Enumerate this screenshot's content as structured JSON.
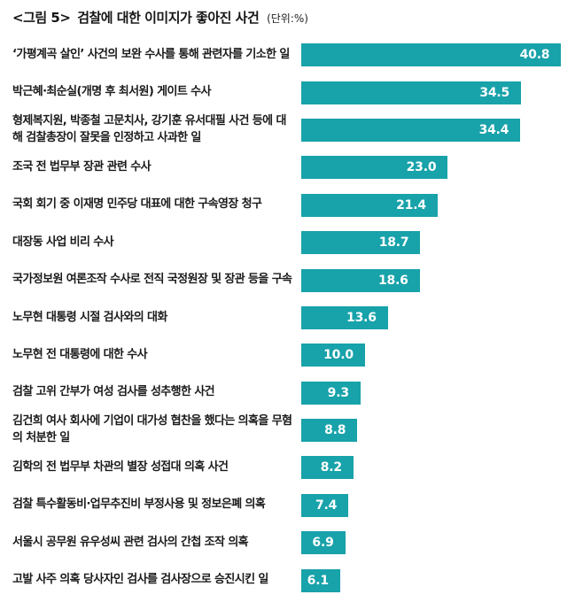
{
  "header": {
    "figure_label": "<그림 5>",
    "title": "검찰에 대한 이미지가 좋아진 사건",
    "unit": "(단위:%)"
  },
  "chart_data": {
    "type": "bar",
    "orientation": "horizontal",
    "title": "검찰에 대한 이미지가 좋아진 사건",
    "unit": "%",
    "xlabel": "",
    "ylabel": "",
    "xlim": [
      0,
      42
    ],
    "grid": false,
    "legend": false,
    "bar_color": "#18a2aa",
    "value_label_color": "#ffffff",
    "categories": [
      "‘가평계곡 살인’ 사건의 보완 수사를 통해 관련자를 기소한 일",
      "박근혜·최순실(개명 후 최서원) 게이트 수사",
      "형제복지원, 박종철 고문치사, 강기훈 유서대필 사건 등에 대해 검찰총장이 잘못을 인정하고 사과한 일",
      "조국 전 법무부 장관 관련 수사",
      "국회 회기 중 이재명 민주당 대표에 대한 구속영장 청구",
      "대장동 사업 비리 수사",
      "국가정보원 여론조작 수사로 전직 국정원장 및 장관 등을 구속",
      "노무현 대통령 시절 검사와의 대화",
      "노무현 전 대통령에 대한 수사",
      "검찰 고위 간부가 여성 검사를 성추행한 사건",
      "김건희 여사 회사에 기업이 대가성 협찬을 했다는 의혹을 무혐의 처분한 일",
      "김학의 전 법무부 차관의 별장 성접대 의혹 사건",
      "검찰 특수활동비·업무추진비 부정사용 및 정보은폐 의혹",
      "서울시 공무원 유우성씨 관련 검사의 간첩 조작 의혹",
      "고발 사주 의혹 당사자인 검사를 검사장으로 승진시킨 일"
    ],
    "values": [
      40.8,
      34.5,
      34.4,
      23.0,
      21.4,
      18.7,
      18.6,
      13.6,
      10.0,
      9.3,
      8.8,
      8.2,
      7.4,
      6.9,
      6.1
    ]
  }
}
